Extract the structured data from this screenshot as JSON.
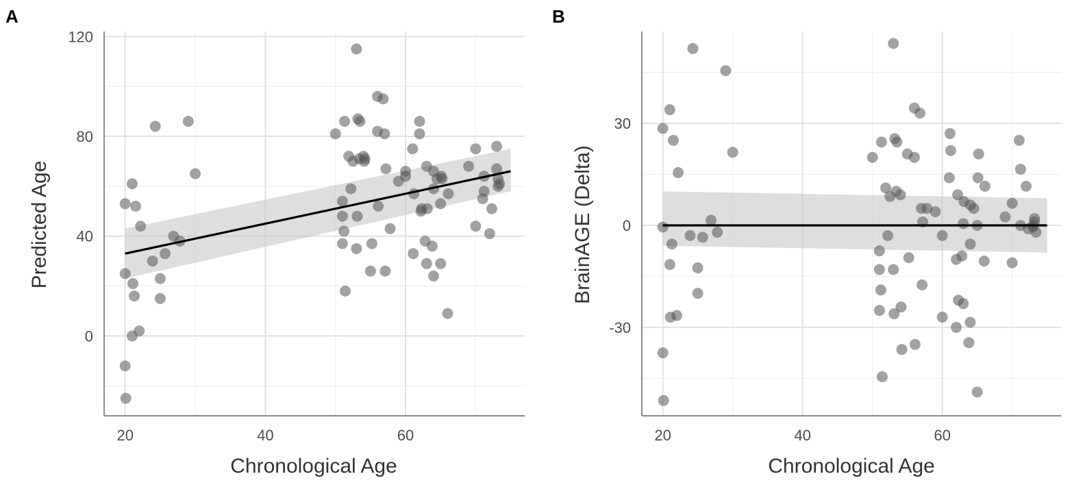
{
  "chart_data": [
    {
      "type": "scatter",
      "panel_label": "A",
      "title": "",
      "xlabel": "Chronological Age",
      "ylabel": "Predicted Age",
      "xlim": [
        17,
        77
      ],
      "ylim": [
        -32,
        122
      ],
      "xticks": [
        20,
        40,
        60
      ],
      "xtick_labels": [
        "20",
        "40",
        "60"
      ],
      "yticks": [
        0,
        40,
        80,
        120
      ],
      "ytick_labels": [
        "0",
        "40",
        "80",
        "120"
      ],
      "grid": true,
      "fit": {
        "x": [
          20,
          75
        ],
        "y": [
          33,
          66
        ],
        "ci_low": [
          23,
          58
        ],
        "ci_high": [
          43,
          75
        ]
      },
      "x": [
        20.0,
        20.0,
        20.0,
        20.1,
        21.0,
        21.0,
        21.1,
        21.3,
        21.5,
        22.0,
        22.2,
        23.9,
        24.3,
        25.0,
        25.0,
        25.7,
        26.9,
        27.8,
        29.0,
        30.0,
        50.0,
        51.0,
        51.0,
        51.0,
        51.2,
        51.3,
        51.4,
        51.9,
        52.2,
        52.5,
        53.0,
        53.0,
        53.1,
        53.2,
        53.4,
        53.5,
        54.0,
        54.1,
        54.2,
        55.0,
        55.2,
        56.0,
        56.0,
        56.1,
        56.8,
        57.0,
        57.1,
        57.2,
        57.8,
        59.0,
        60.0,
        60.0,
        61.0,
        61.1,
        61.2,
        62.0,
        62.0,
        62.2,
        62.3,
        62.8,
        63.0,
        63.0,
        63.1,
        63.8,
        64.0,
        64.0,
        64.0,
        64.5,
        65.0,
        65.0,
        65.1,
        65.2,
        66.0,
        66.1,
        69.0,
        70.0,
        70.0,
        71.0,
        71.2,
        72.0,
        72.3,
        73.0,
        73.0,
        73.2,
        73.2,
        73.4,
        71.2
      ],
      "y": [
        53.0,
        25.0,
        -12.0,
        -25.0,
        61.0,
        0.0,
        21.0,
        16.0,
        52.0,
        2.0,
        44.0,
        30.0,
        84.0,
        23.0,
        15.0,
        33.0,
        40.0,
        38.0,
        86.0,
        65.0,
        81.0,
        37.0,
        48.0,
        54.0,
        42.0,
        86.0,
        18.0,
        72.0,
        59.0,
        70.0,
        115.0,
        35.0,
        48.0,
        87.0,
        71.0,
        86.0,
        72.0,
        70.0,
        71.0,
        26.0,
        37.0,
        96.0,
        82.0,
        52.0,
        95.0,
        81.0,
        26.0,
        67.0,
        43.0,
        62.0,
        66.0,
        64.0,
        75.0,
        33.0,
        57.0,
        86.0,
        81.0,
        50.0,
        51.0,
        38.0,
        68.0,
        29.0,
        51.0,
        36.0,
        24.0,
        59.0,
        66.0,
        63.0,
        29.0,
        53.0,
        64.0,
        63.0,
        9.0,
        57.0,
        68.0,
        44.0,
        75.0,
        55.0,
        64.0,
        41.0,
        51.0,
        76.0,
        67.0,
        60.0,
        63.0,
        61.0,
        58.0
      ]
    },
    {
      "type": "scatter",
      "panel_label": "B",
      "title": "",
      "xlabel": "Chronological Age",
      "ylabel": "BrainAGE (Delta)",
      "xlim": [
        17,
        77
      ],
      "ylim": [
        -56,
        57
      ],
      "xticks": [
        20,
        40,
        60
      ],
      "xtick_labels": [
        "20",
        "40",
        "60"
      ],
      "yticks": [
        -30,
        0,
        30
      ],
      "ytick_labels": [
        "-30",
        "0",
        "30"
      ],
      "grid": true,
      "fit": {
        "x": [
          20,
          75
        ],
        "y": [
          0,
          0
        ],
        "ci_low": [
          -6,
          -8
        ],
        "ci_high": [
          10,
          8
        ]
      },
      "x": [
        20.0,
        20.0,
        20.0,
        20.1,
        21.0,
        21.0,
        21.1,
        21.3,
        21.5,
        22.0,
        22.2,
        23.9,
        24.3,
        25.0,
        25.0,
        25.7,
        26.9,
        27.8,
        29.0,
        30.0,
        50.0,
        51.0,
        51.0,
        51.0,
        51.2,
        51.3,
        51.4,
        51.9,
        52.2,
        52.5,
        53.0,
        53.0,
        53.1,
        53.2,
        53.4,
        53.5,
        54.0,
        54.1,
        54.2,
        55.0,
        55.2,
        56.0,
        56.0,
        56.1,
        56.8,
        57.0,
        57.1,
        57.2,
        57.8,
        59.0,
        60.0,
        60.0,
        61.0,
        61.1,
        61.2,
        62.0,
        62.0,
        62.2,
        62.3,
        62.8,
        63.0,
        63.0,
        63.1,
        63.8,
        64.0,
        64.0,
        64.0,
        64.5,
        65.0,
        65.0,
        65.1,
        65.2,
        66.0,
        66.1,
        69.0,
        70.0,
        70.0,
        71.0,
        71.2,
        72.0,
        72.3,
        73.0,
        73.0,
        73.2,
        73.2,
        73.4,
        71.2
      ],
      "y": [
        28.5,
        -0.5,
        -37.5,
        -51.5,
        34.0,
        -11.5,
        -27.0,
        -5.5,
        25.0,
        -26.5,
        15.5,
        -3.0,
        52.0,
        -12.5,
        -20.0,
        -3.5,
        1.5,
        -2.0,
        45.5,
        21.5,
        20.0,
        -7.5,
        -25.0,
        -13.0,
        -19.0,
        24.5,
        -44.5,
        11.0,
        -3.0,
        8.5,
        53.5,
        -13.0,
        -26.0,
        25.5,
        10.0,
        24.5,
        9.0,
        -24.0,
        -36.5,
        21.0,
        -9.5,
        34.5,
        20.0,
        -35.0,
        33.0,
        5.0,
        -17.5,
        1.0,
        5.0,
        4.0,
        -27.0,
        -3.0,
        14.0,
        27.0,
        22.0,
        -10.0,
        -30.0,
        9.0,
        -22.0,
        -9.0,
        -23.0,
        0.5,
        7.0,
        -34.5,
        -28.5,
        -5.5,
        6.0,
        5.0,
        0.0,
        -49.0,
        14.0,
        21.0,
        -10.5,
        11.5,
        2.5,
        -11.0,
        6.5,
        25.0,
        16.5,
        11.5,
        -1.0,
        0.0,
        -0.5,
        1.0,
        2.0,
        -2.0,
        0.0
      ]
    }
  ]
}
